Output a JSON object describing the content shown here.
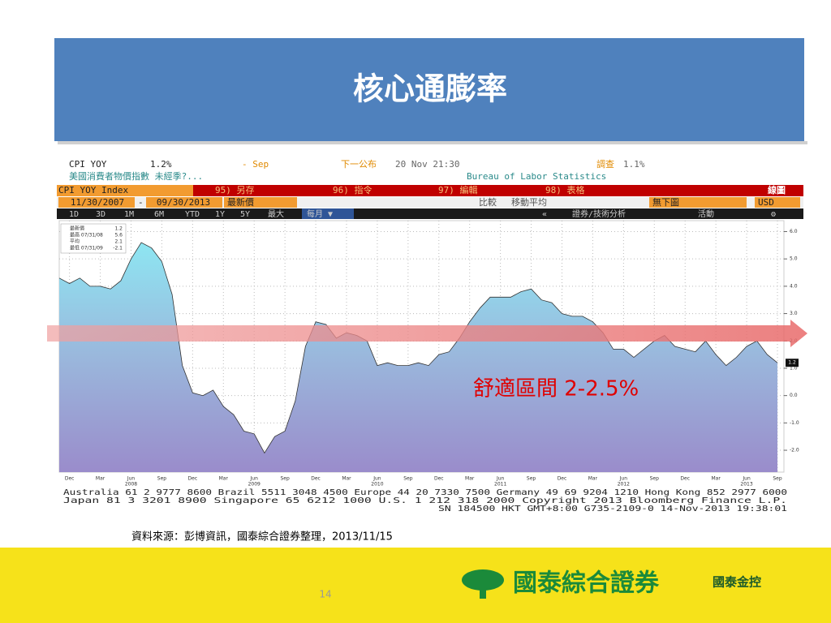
{
  "slide": {
    "title": "核心通膨率",
    "source": "資料來源：彭博資訊，國泰綜合證券整理，2013/11/15",
    "page_number": "14",
    "logo": "國泰綜合證券",
    "brand": "國泰金控"
  },
  "terminal": {
    "row1": [
      "CPI YOY",
      "1.2%",
      "- Sep",
      "下一公布",
      "20 Nov 21:30",
      "調查",
      "1.1%"
    ],
    "row2": [
      "美國消費者物價指數 未經季?...",
      "Bureau of Labor Statistics"
    ],
    "menu": [
      "CPI YOY Index",
      "95) 另存",
      "96) 指令",
      "97) 編輯",
      "98) 表格",
      "線圖"
    ],
    "options": [
      "11/30/2007",
      "-",
      "09/30/2013",
      "最新價",
      "比較",
      "移動平均",
      "無下圖",
      "USD"
    ],
    "periods": [
      "1D",
      "3D",
      "1M",
      "6M",
      "YTD",
      "1Y",
      "5Y",
      "最大",
      "每月 ▼",
      "«",
      "證券/技術分析",
      "活動",
      "⚙"
    ],
    "footer": [
      "Australia 61 2 9777 8600 Brazil 5511 3048 4500 Europe 44 20 7330 7500 Germany 49 69 9204 1210 Hong Kong 852 2977 6000",
      "Japan 81 3 3201 8900          Singapore 65 6212 1000          U.S. 1 212 318 2000          Copyright 2013 Bloomberg Finance L.P.",
      "SN 184500 HKT   GMT+8:00 G735-2109-0 14-Nov-2013 19:38:01"
    ]
  },
  "chart_data": {
    "type": "area",
    "color": "#333333",
    "grid": true,
    "annotation": "舒適區間  2-2.5%",
    "stats": [
      {
        "label": "最新價",
        "value": 1.2
      },
      {
        "label": "最高 07/31/08",
        "value": 5.6
      },
      {
        "label": "平均",
        "value": 2.1
      },
      {
        "label": "最低 07/31/09",
        "value": -2.1
      }
    ],
    "x": [
      "2007-11",
      "2007-12",
      "2008-01",
      "2008-02",
      "2008-03",
      "2008-04",
      "2008-05",
      "2008-06",
      "2008-07",
      "2008-08",
      "2008-09",
      "2008-10",
      "2008-11",
      "2008-12",
      "2009-01",
      "2009-02",
      "2009-03",
      "2009-04",
      "2009-05",
      "2009-06",
      "2009-07",
      "2009-08",
      "2009-09",
      "2009-10",
      "2009-11",
      "2009-12",
      "2010-01",
      "2010-02",
      "2010-03",
      "2010-04",
      "2010-05",
      "2010-06",
      "2010-07",
      "2010-08",
      "2010-09",
      "2010-10",
      "2010-11",
      "2010-12",
      "2011-01",
      "2011-02",
      "2011-03",
      "2011-04",
      "2011-05",
      "2011-06",
      "2011-07",
      "2011-08",
      "2011-09",
      "2011-10",
      "2011-11",
      "2011-12",
      "2012-01",
      "2012-02",
      "2012-03",
      "2012-04",
      "2012-05",
      "2012-06",
      "2012-07",
      "2012-08",
      "2012-09",
      "2012-10",
      "2012-11",
      "2012-12",
      "2013-01",
      "2013-02",
      "2013-03",
      "2013-04",
      "2013-05",
      "2013-06",
      "2013-07",
      "2013-08",
      "2013-09"
    ],
    "values": [
      4.3,
      4.1,
      4.3,
      4.0,
      4.0,
      3.9,
      4.2,
      5.0,
      5.6,
      5.4,
      4.9,
      3.7,
      1.1,
      0.1,
      0.0,
      0.2,
      -0.4,
      -0.7,
      -1.3,
      -1.4,
      -2.1,
      -1.5,
      -1.3,
      -0.2,
      1.8,
      2.7,
      2.6,
      2.1,
      2.3,
      2.2,
      2.0,
      1.1,
      1.2,
      1.1,
      1.1,
      1.2,
      1.1,
      1.5,
      1.6,
      2.1,
      2.7,
      3.2,
      3.6,
      3.6,
      3.6,
      3.8,
      3.9,
      3.5,
      3.4,
      3.0,
      2.9,
      2.9,
      2.7,
      2.3,
      1.7,
      1.7,
      1.4,
      1.7,
      2.0,
      2.2,
      1.8,
      1.7,
      1.6,
      2.0,
      1.5,
      1.1,
      1.4,
      1.8,
      2.0,
      1.5,
      1.2
    ],
    "ylim": [
      -2.8,
      6.4
    ],
    "yticks": [
      {
        "value": -2,
        "label": "-2.0"
      },
      {
        "value": -1,
        "label": "-1.0"
      },
      {
        "value": 0,
        "label": "0.0"
      },
      {
        "value": 1,
        "label": "1.0"
      },
      {
        "value": 2,
        "label": "2.0"
      },
      {
        "value": 3,
        "label": "3.0"
      },
      {
        "value": 4,
        "label": "4.0"
      },
      {
        "value": 5,
        "label": "5.0"
      },
      {
        "value": 6,
        "label": "6.0"
      }
    ],
    "xticks": [
      {
        "value": "2007-12",
        "label": "Dec"
      },
      {
        "value": "2008-03",
        "label": "Mar"
      },
      {
        "value": "2008-06",
        "label": "Jun"
      },
      {
        "value": "2008-09",
        "label": "Sep"
      },
      {
        "value": "2008-12",
        "label": "Dec"
      },
      {
        "value": "2009-03",
        "label": "Mar"
      },
      {
        "value": "2009-06",
        "label": "Jun"
      },
      {
        "value": "2009-09",
        "label": "Sep"
      },
      {
        "value": "2009-12",
        "label": "Dec"
      },
      {
        "value": "2010-03",
        "label": "Mar"
      },
      {
        "value": "2010-06",
        "label": "Jun"
      },
      {
        "value": "2010-09",
        "label": "Sep"
      },
      {
        "value": "2010-12",
        "label": "Dec"
      },
      {
        "value": "2011-03",
        "label": "Mar"
      },
      {
        "value": "2011-06",
        "label": "Jun"
      },
      {
        "value": "2011-09",
        "label": "Sep"
      },
      {
        "value": "2011-12",
        "label": "Dec"
      },
      {
        "value": "2012-03",
        "label": "Mar"
      },
      {
        "value": "2012-06",
        "label": "Jun"
      },
      {
        "value": "2012-09",
        "label": "Sep"
      },
      {
        "value": "2012-12",
        "label": "Dec"
      },
      {
        "value": "2013-03",
        "label": "Mar"
      },
      {
        "value": "2013-06",
        "label": "Jun"
      },
      {
        "value": "2013-09",
        "label": "Sep"
      }
    ],
    "xtick_years": [
      {
        "value": "2008-06",
        "label": "2008"
      },
      {
        "value": "2009-06",
        "label": "2009"
      },
      {
        "value": "2010-06",
        "label": "2010"
      },
      {
        "value": "2011-06",
        "label": "2011"
      },
      {
        "value": "2012-06",
        "label": "2012"
      },
      {
        "value": "2013-06",
        "label": "2013"
      }
    ]
  }
}
